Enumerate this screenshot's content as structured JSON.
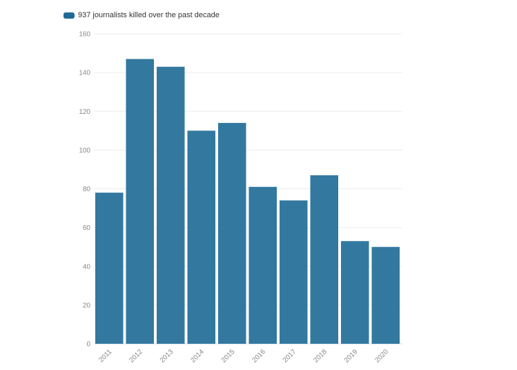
{
  "chart_data": {
    "type": "bar",
    "title": "",
    "legend": {
      "label": "937 journalists killed over the past decade",
      "placement": "top-left"
    },
    "categories": [
      "2011",
      "2012",
      "2013",
      "2014",
      "2015",
      "2016",
      "2017",
      "2018",
      "2019",
      "2020"
    ],
    "values": [
      78,
      147,
      143,
      110,
      114,
      81,
      74,
      87,
      53,
      50
    ],
    "xlabel": "",
    "ylabel": "",
    "ylim": [
      0,
      160
    ],
    "yticks": [
      0,
      20,
      40,
      60,
      80,
      100,
      120,
      140,
      160
    ],
    "grid": true,
    "color": "#33789f",
    "swatch_color": "#1f6a96"
  }
}
